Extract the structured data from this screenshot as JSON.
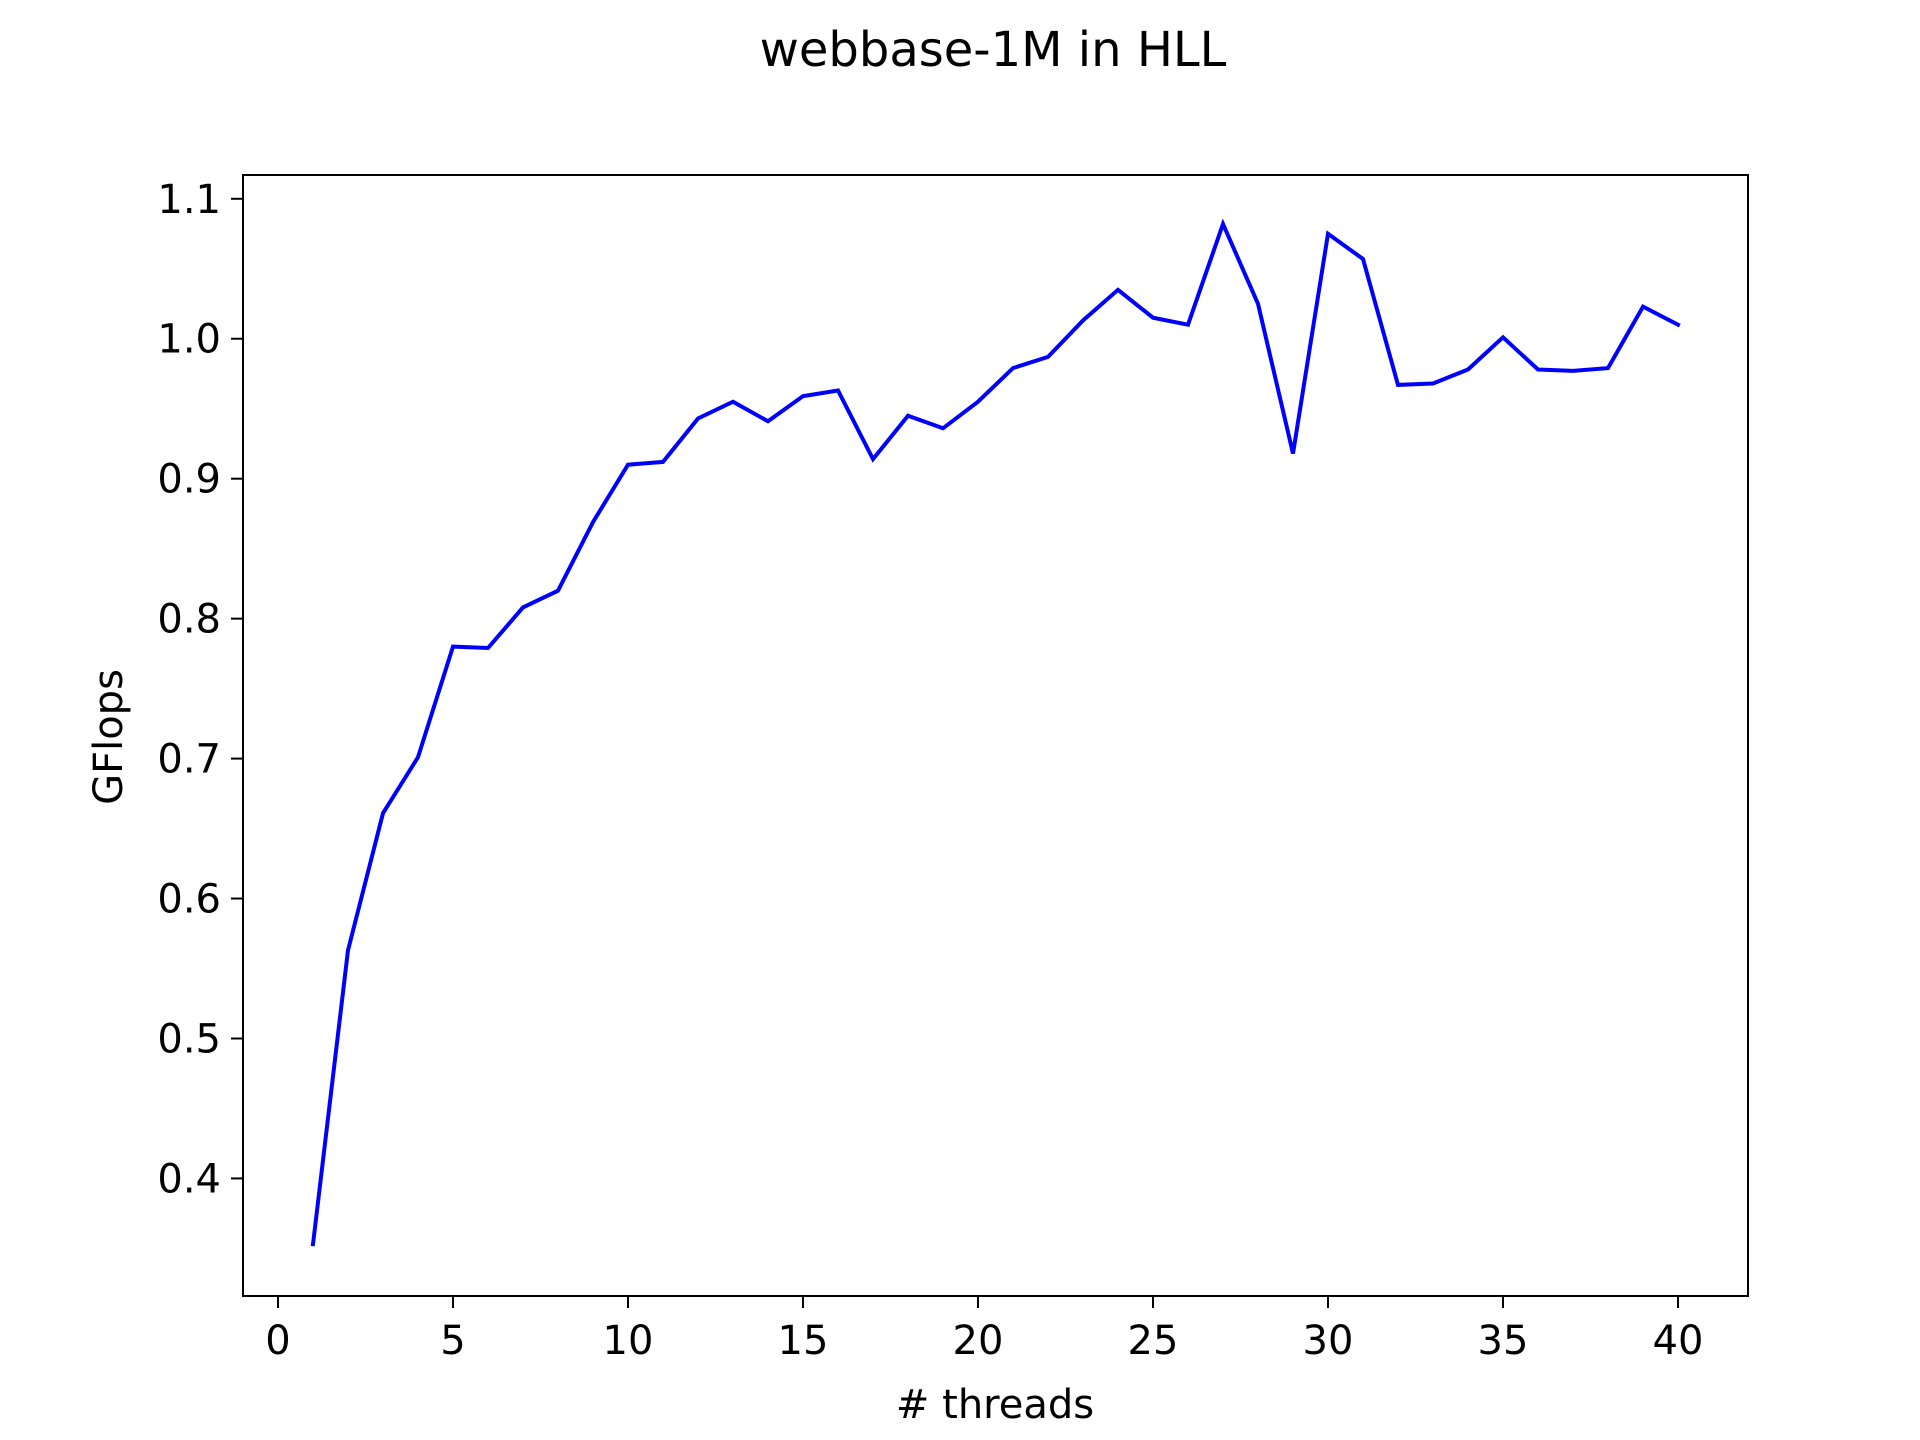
{
  "chart_data": {
    "type": "line",
    "title": "webbase-1M in HLL",
    "xlabel": "# threads",
    "ylabel": "GFlops",
    "xlim": [
      -1,
      42
    ],
    "ylim": [
      0.316,
      1.117
    ],
    "xticks": [
      0,
      5,
      10,
      15,
      20,
      25,
      30,
      35,
      40
    ],
    "yticks": [
      0.4,
      0.5,
      0.6,
      0.7,
      0.8,
      0.9,
      1.0,
      1.1
    ],
    "grid": false,
    "series": [
      {
        "color": "#0000ff",
        "x": [
          1,
          2,
          3,
          4,
          5,
          6,
          7,
          8,
          9,
          10,
          11,
          12,
          13,
          14,
          15,
          16,
          17,
          18,
          19,
          20,
          21,
          22,
          23,
          24,
          25,
          26,
          27,
          28,
          29,
          30,
          31,
          32,
          33,
          34,
          35,
          36,
          37,
          38,
          39,
          40
        ],
        "y": [
          0.353,
          0.563,
          0.661,
          0.701,
          0.78,
          0.779,
          0.808,
          0.82,
          0.869,
          0.91,
          0.912,
          0.943,
          0.955,
          0.941,
          0.959,
          0.963,
          0.914,
          0.945,
          0.936,
          0.955,
          0.979,
          0.987,
          1.013,
          1.035,
          1.015,
          1.01,
          1.082,
          1.025,
          0.918,
          1.075,
          1.057,
          0.967,
          0.968,
          0.978,
          1.001,
          0.978,
          0.977,
          0.979,
          1.023,
          1.01
        ]
      }
    ]
  }
}
